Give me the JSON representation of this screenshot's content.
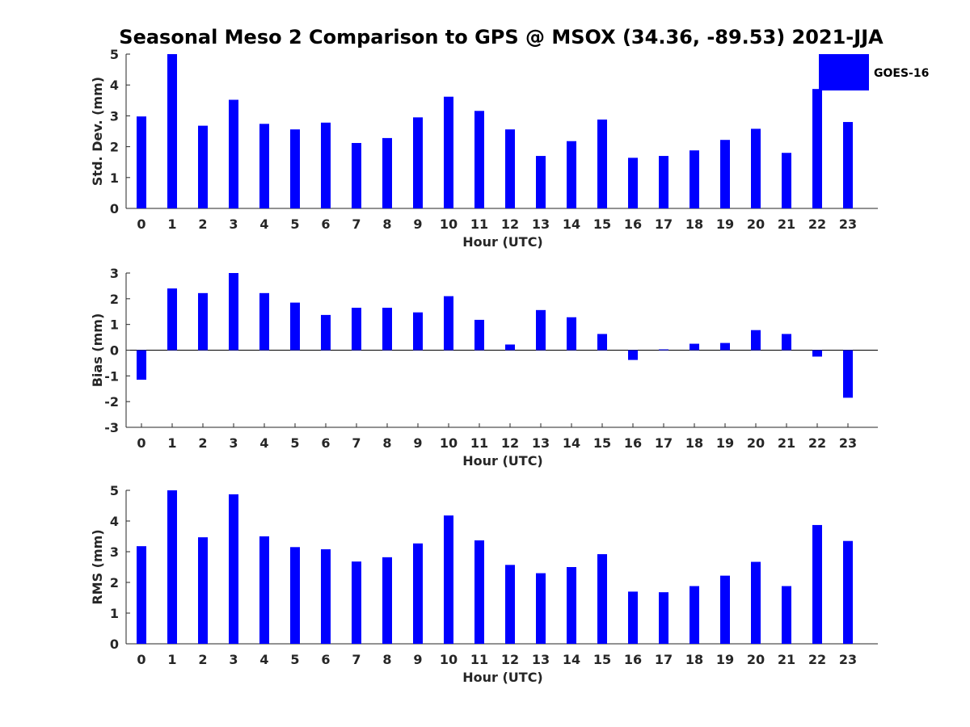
{
  "title": "Seasonal Meso 2 Comparison to GPS @ MSOX (34.36, -89.53) 2021-JJA",
  "colors": {
    "bar": "#0000ff",
    "axis": "#262626"
  },
  "legend": {
    "label": "GOES-16",
    "placement": "top-right"
  },
  "chart_data": [
    {
      "type": "bar",
      "xlabel": "Hour (UTC)",
      "ylabel": "Std. Dev. (mm)",
      "ylim": [
        0,
        5
      ],
      "yticks": [
        0,
        1,
        2,
        3,
        4,
        5
      ],
      "categories": [
        "0",
        "1",
        "2",
        "3",
        "4",
        "5",
        "6",
        "7",
        "8",
        "9",
        "10",
        "11",
        "12",
        "13",
        "14",
        "15",
        "16",
        "17",
        "18",
        "19",
        "20",
        "21",
        "22",
        "23"
      ],
      "series": [
        {
          "name": "GOES-16",
          "values": [
            2.98,
            5.0,
            2.68,
            3.52,
            2.74,
            2.56,
            2.78,
            2.12,
            2.28,
            2.95,
            3.62,
            3.16,
            2.56,
            1.7,
            2.18,
            2.88,
            1.64,
            1.7,
            1.88,
            2.22,
            2.58,
            1.8,
            3.87,
            2.8
          ]
        }
      ]
    },
    {
      "type": "bar",
      "xlabel": "Hour (UTC)",
      "ylabel": "Bias (mm)",
      "ylim": [
        -3,
        3
      ],
      "yticks": [
        -3,
        -2,
        -1,
        0,
        1,
        2,
        3
      ],
      "categories": [
        "0",
        "1",
        "2",
        "3",
        "4",
        "5",
        "6",
        "7",
        "8",
        "9",
        "10",
        "11",
        "12",
        "13",
        "14",
        "15",
        "16",
        "17",
        "18",
        "19",
        "20",
        "21",
        "22",
        "23"
      ],
      "series": [
        {
          "name": "GOES-16",
          "values": [
            -1.15,
            2.4,
            2.22,
            3.0,
            2.22,
            1.85,
            1.37,
            1.65,
            1.65,
            1.47,
            2.1,
            1.18,
            0.22,
            1.56,
            1.28,
            0.63,
            -0.38,
            0.03,
            0.25,
            0.28,
            0.78,
            0.63,
            -0.25,
            -1.85
          ]
        }
      ]
    },
    {
      "type": "bar",
      "xlabel": "Hour (UTC)",
      "ylabel": "RMS (mm)",
      "ylim": [
        0,
        5
      ],
      "yticks": [
        0,
        1,
        2,
        3,
        4,
        5
      ],
      "categories": [
        "0",
        "1",
        "2",
        "3",
        "4",
        "5",
        "6",
        "7",
        "8",
        "9",
        "10",
        "11",
        "12",
        "13",
        "14",
        "15",
        "16",
        "17",
        "18",
        "19",
        "20",
        "21",
        "22",
        "23"
      ],
      "series": [
        {
          "name": "GOES-16",
          "values": [
            3.18,
            5.0,
            3.47,
            4.87,
            3.5,
            3.15,
            3.08,
            2.68,
            2.82,
            3.27,
            4.18,
            3.37,
            2.57,
            2.3,
            2.5,
            2.92,
            1.7,
            1.68,
            1.88,
            2.22,
            2.67,
            1.88,
            3.87,
            3.35
          ]
        }
      ]
    }
  ]
}
